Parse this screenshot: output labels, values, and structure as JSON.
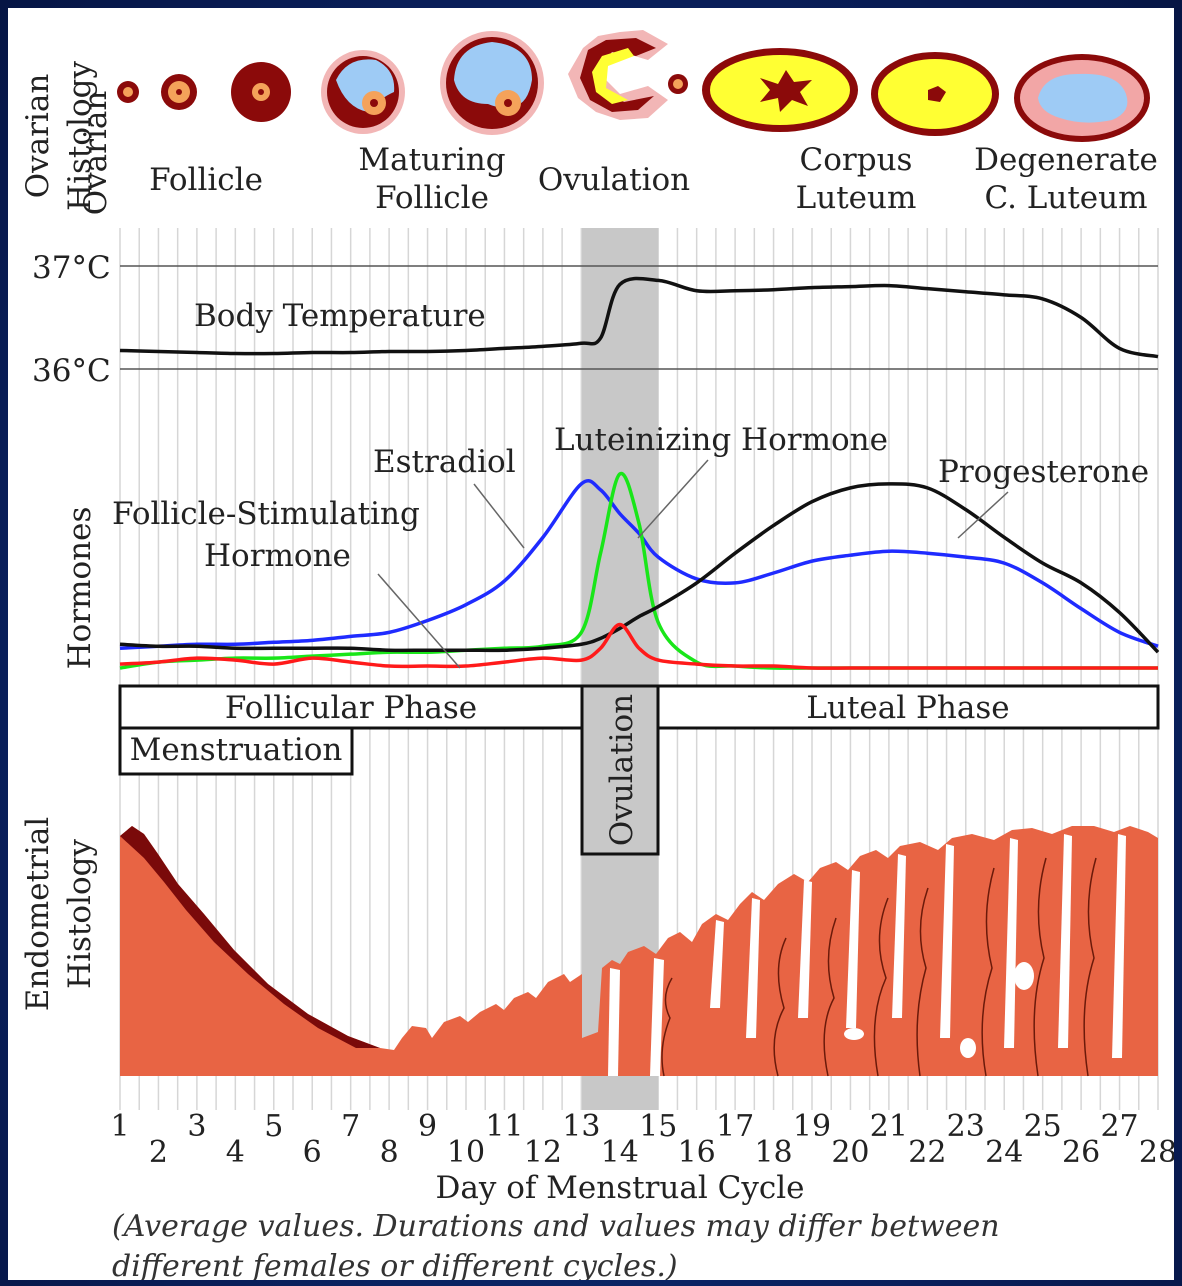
{
  "ovarian": {
    "row_label_1": "Ovarian",
    "row_label_2": "Histology",
    "stages": {
      "follicle": "Follicle",
      "maturing_1": "Maturing",
      "maturing_2": "Follicle",
      "ovulation": "Ovulation",
      "corpus_1": "Corpus",
      "corpus_2": "Luteum",
      "degenerate_1": "Degenerate",
      "degenerate_2": "C. Luteum"
    }
  },
  "temperature": {
    "label": "Body Temperature",
    "tick_high": "37°C",
    "tick_low": "36°C",
    "days": [
      1,
      2,
      3,
      4,
      5,
      6,
      7,
      8,
      9,
      10,
      11,
      12,
      13,
      13.5,
      14,
      15,
      16,
      17,
      18,
      19,
      20,
      21,
      22,
      23,
      24,
      25,
      26,
      27,
      28
    ],
    "values": [
      36.18,
      36.17,
      36.16,
      36.15,
      36.15,
      36.16,
      36.16,
      36.17,
      36.17,
      36.18,
      36.2,
      36.22,
      36.25,
      36.3,
      36.82,
      36.86,
      36.76,
      36.76,
      36.77,
      36.79,
      36.8,
      36.81,
      36.78,
      36.75,
      36.72,
      36.68,
      36.5,
      36.2,
      36.12
    ]
  },
  "hormones": {
    "row_label": "Hormones",
    "labels": {
      "estradiol": "Estradiol",
      "lh": "Luteinizing  Hormone",
      "progesterone": "Progesterone",
      "fsh_1": "Follicle-Stimulating",
      "fsh_2": "Hormone"
    },
    "colors": {
      "estradiol": "#1f2bff",
      "lh": "#19e619",
      "progesterone": "#111111",
      "fsh": "#ff1a1a"
    }
  },
  "chart_data": {
    "type": "line",
    "xlabel": "Day of Menstrual Cycle",
    "x": [
      1,
      2,
      3,
      4,
      5,
      6,
      7,
      8,
      9,
      10,
      11,
      12,
      13,
      13.5,
      14,
      14.5,
      15,
      16,
      17,
      18,
      19,
      20,
      21,
      22,
      23,
      24,
      25,
      26,
      27,
      28
    ],
    "series": [
      {
        "name": "Estradiol",
        "values": [
          0.12,
          0.13,
          0.14,
          0.14,
          0.15,
          0.16,
          0.18,
          0.2,
          0.26,
          0.34,
          0.46,
          0.68,
          0.95,
          0.92,
          0.8,
          0.7,
          0.58,
          0.47,
          0.45,
          0.5,
          0.56,
          0.59,
          0.61,
          0.6,
          0.58,
          0.55,
          0.45,
          0.32,
          0.2,
          0.13
        ]
      },
      {
        "name": "Luteinizing Hormone",
        "values": [
          0.02,
          0.05,
          0.06,
          0.07,
          0.07,
          0.08,
          0.09,
          0.1,
          0.1,
          0.11,
          0.12,
          0.13,
          0.2,
          0.6,
          1.0,
          0.75,
          0.25,
          0.05,
          0.03,
          0.02,
          0.02,
          0.02,
          0.02,
          0.02,
          0.02,
          0.02,
          0.02,
          0.02,
          0.02,
          0.02
        ]
      },
      {
        "name": "Progesterone",
        "values": [
          0.14,
          0.13,
          0.13,
          0.12,
          0.12,
          0.12,
          0.12,
          0.11,
          0.11,
          0.11,
          0.11,
          0.12,
          0.14,
          0.17,
          0.22,
          0.28,
          0.33,
          0.45,
          0.6,
          0.74,
          0.86,
          0.93,
          0.95,
          0.93,
          0.82,
          0.68,
          0.55,
          0.45,
          0.3,
          0.1
        ]
      },
      {
        "name": "Follicle-Stimulating Hormone",
        "values": [
          0.04,
          0.05,
          0.07,
          0.06,
          0.04,
          0.07,
          0.05,
          0.03,
          0.03,
          0.03,
          0.05,
          0.07,
          0.06,
          0.12,
          0.24,
          0.12,
          0.06,
          0.04,
          0.03,
          0.03,
          0.02,
          0.02,
          0.02,
          0.02,
          0.02,
          0.02,
          0.02,
          0.02,
          0.02,
          0.02
        ]
      }
    ]
  },
  "phases": {
    "follicular": "Follicular Phase",
    "ovulation": "Ovulation",
    "luteal": "Luteal Phase",
    "menstruation": "Menstruation"
  },
  "endometrial": {
    "row_label_1": "Endometrial",
    "row_label_2": "Histology"
  },
  "axis": {
    "xlabel": "Day of Menstrual Cycle",
    "odd_days": [
      "1",
      "3",
      "5",
      "7",
      "9",
      "11",
      "13",
      "15",
      "17",
      "19",
      "21",
      "23",
      "25",
      "27"
    ],
    "even_days": [
      "2",
      "4",
      "6",
      "8",
      "10",
      "12",
      "14",
      "16",
      "18",
      "20",
      "22",
      "24",
      "26",
      "28"
    ]
  },
  "footnote": {
    "line1": "(Average values. Durations and values may differ between",
    "line2": "different females or different cycles.)"
  }
}
